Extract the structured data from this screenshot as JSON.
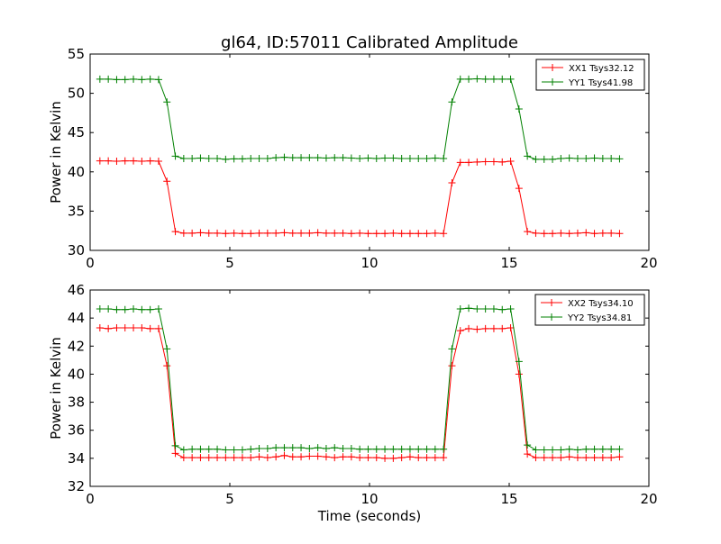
{
  "figure": {
    "title": "gl64, ID:57011 Calibrated Amplitude"
  },
  "chart_data": [
    {
      "type": "line",
      "title": "gl64, ID:57011 Calibrated Amplitude",
      "xlabel": "",
      "ylabel": "Power in Kelvin",
      "xlim": [
        0,
        20
      ],
      "ylim": [
        30,
        55
      ],
      "xticks": [
        0,
        5,
        10,
        15,
        20
      ],
      "yticks": [
        30,
        35,
        40,
        45,
        50,
        55
      ],
      "grid": false,
      "legend_position": "top-right",
      "x": [
        0.35,
        0.65,
        0.95,
        1.25,
        1.55,
        1.85,
        2.15,
        2.45,
        2.75,
        3.05,
        3.35,
        3.65,
        3.95,
        4.25,
        4.55,
        4.85,
        5.15,
        5.45,
        5.75,
        6.05,
        6.35,
        6.65,
        6.95,
        7.25,
        7.55,
        7.85,
        8.15,
        8.45,
        8.75,
        9.05,
        9.35,
        9.65,
        9.95,
        10.25,
        10.55,
        10.85,
        11.15,
        11.45,
        11.75,
        12.05,
        12.35,
        12.65,
        12.95,
        13.25,
        13.55,
        13.85,
        14.15,
        14.45,
        14.75,
        15.05,
        15.35,
        15.65,
        15.95,
        16.25,
        16.55,
        16.85,
        17.15,
        17.45,
        17.75,
        18.05,
        18.35,
        18.65,
        18.95
      ],
      "series": [
        {
          "name": "XX1 Tsys32.12",
          "color": "#ff0000",
          "marker": "+",
          "values": [
            41.4,
            41.4,
            41.35,
            41.4,
            41.4,
            41.35,
            41.4,
            41.35,
            38.8,
            32.4,
            32.2,
            32.2,
            32.25,
            32.2,
            32.2,
            32.15,
            32.2,
            32.15,
            32.15,
            32.2,
            32.2,
            32.2,
            32.25,
            32.2,
            32.2,
            32.2,
            32.25,
            32.2,
            32.2,
            32.2,
            32.15,
            32.2,
            32.15,
            32.15,
            32.15,
            32.2,
            32.15,
            32.15,
            32.15,
            32.15,
            32.2,
            32.15,
            38.6,
            41.2,
            41.2,
            41.25,
            41.3,
            41.3,
            41.25,
            41.35,
            37.9,
            32.4,
            32.2,
            32.15,
            32.15,
            32.2,
            32.15,
            32.2,
            32.25,
            32.15,
            32.2,
            32.2,
            32.15
          ]
        },
        {
          "name": "YY1 Tsys41.98",
          "color": "#008000",
          "marker": "+",
          "values": [
            51.8,
            51.8,
            51.75,
            51.75,
            51.8,
            51.75,
            51.8,
            51.75,
            48.9,
            42.0,
            41.7,
            41.7,
            41.75,
            41.7,
            41.7,
            41.6,
            41.65,
            41.65,
            41.7,
            41.7,
            41.7,
            41.8,
            41.85,
            41.8,
            41.8,
            41.8,
            41.8,
            41.75,
            41.8,
            41.8,
            41.75,
            41.7,
            41.75,
            41.7,
            41.75,
            41.75,
            41.7,
            41.7,
            41.7,
            41.7,
            41.75,
            41.7,
            48.9,
            51.8,
            51.8,
            51.85,
            51.8,
            51.8,
            51.8,
            51.8,
            48.0,
            42.0,
            41.6,
            41.6,
            41.6,
            41.7,
            41.75,
            41.7,
            41.7,
            41.75,
            41.7,
            41.7,
            41.65
          ]
        }
      ]
    },
    {
      "type": "line",
      "title": "",
      "xlabel": "Time (seconds)",
      "ylabel": "Power in Kelvin",
      "xlim": [
        0,
        20
      ],
      "ylim": [
        32,
        46
      ],
      "xticks": [
        0,
        5,
        10,
        15,
        20
      ],
      "yticks": [
        32,
        34,
        36,
        38,
        40,
        42,
        44,
        46
      ],
      "grid": false,
      "legend_position": "top-right",
      "x": [
        0.35,
        0.65,
        0.95,
        1.25,
        1.55,
        1.85,
        2.15,
        2.45,
        2.75,
        3.05,
        3.35,
        3.65,
        3.95,
        4.25,
        4.55,
        4.85,
        5.15,
        5.45,
        5.75,
        6.05,
        6.35,
        6.65,
        6.95,
        7.25,
        7.55,
        7.85,
        8.15,
        8.45,
        8.75,
        9.05,
        9.35,
        9.65,
        9.95,
        10.25,
        10.55,
        10.85,
        11.15,
        11.45,
        11.75,
        12.05,
        12.35,
        12.65,
        12.95,
        13.25,
        13.55,
        13.85,
        14.15,
        14.45,
        14.75,
        15.05,
        15.35,
        15.65,
        15.95,
        16.25,
        16.55,
        16.85,
        17.15,
        17.45,
        17.75,
        18.05,
        18.35,
        18.65,
        18.95
      ],
      "series": [
        {
          "name": "XX2 Tsys34.10",
          "color": "#ff0000",
          "marker": "+",
          "values": [
            43.3,
            43.25,
            43.3,
            43.3,
            43.3,
            43.3,
            43.25,
            43.25,
            40.6,
            34.35,
            34.05,
            34.05,
            34.05,
            34.05,
            34.05,
            34.05,
            34.05,
            34.05,
            34.05,
            34.1,
            34.05,
            34.1,
            34.2,
            34.1,
            34.1,
            34.15,
            34.15,
            34.1,
            34.05,
            34.1,
            34.1,
            34.05,
            34.05,
            34.05,
            34.0,
            34.0,
            34.05,
            34.1,
            34.05,
            34.05,
            34.05,
            34.05,
            40.6,
            43.1,
            43.25,
            43.2,
            43.25,
            43.25,
            43.25,
            43.3,
            40.0,
            34.3,
            34.05,
            34.05,
            34.05,
            34.05,
            34.1,
            34.05,
            34.05,
            34.05,
            34.05,
            34.05,
            34.1
          ]
        },
        {
          "name": "YY2 Tsys34.81",
          "color": "#008000",
          "marker": "+",
          "values": [
            44.65,
            44.65,
            44.6,
            44.6,
            44.65,
            44.6,
            44.6,
            44.65,
            41.8,
            34.9,
            34.6,
            34.65,
            34.65,
            34.65,
            34.65,
            34.6,
            34.6,
            34.6,
            34.65,
            34.7,
            34.7,
            34.75,
            34.75,
            34.75,
            34.75,
            34.7,
            34.75,
            34.7,
            34.75,
            34.7,
            34.7,
            34.65,
            34.65,
            34.65,
            34.65,
            34.65,
            34.65,
            34.65,
            34.65,
            34.65,
            34.65,
            34.65,
            41.8,
            44.65,
            44.7,
            44.65,
            44.65,
            44.65,
            44.6,
            44.65,
            40.9,
            34.95,
            34.6,
            34.6,
            34.6,
            34.6,
            34.65,
            34.6,
            34.65,
            34.65,
            34.65,
            34.65,
            34.65
          ]
        }
      ]
    }
  ]
}
